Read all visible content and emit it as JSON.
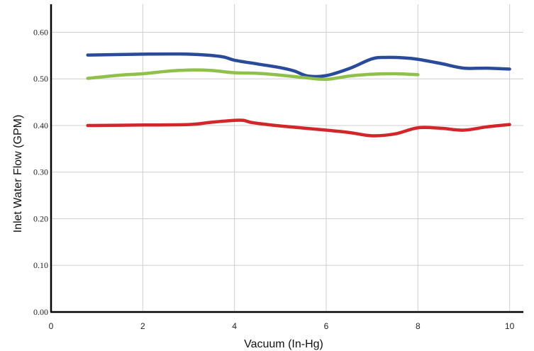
{
  "chart_data": {
    "type": "line",
    "title": "",
    "xlabel": "Vacuum (In-Hg)",
    "ylabel": "Inlet Water Flow (GPM)",
    "xlim": [
      0,
      10.3
    ],
    "ylim": [
      0,
      0.66
    ],
    "x_ticks": [
      0,
      2,
      4,
      6,
      8,
      10
    ],
    "x_tick_labels": [
      "0",
      "2",
      "4",
      "6",
      "8",
      "10"
    ],
    "y_ticks": [
      0.0,
      0.1,
      0.2,
      0.3,
      0.4,
      0.5,
      0.6
    ],
    "y_tick_labels": [
      "0.00",
      "0.10",
      "0.20",
      "0.30",
      "0.40",
      "0.50",
      "0.60"
    ],
    "grid": true,
    "series": [
      {
        "color": "#2a4a9a",
        "x": [
          0.8,
          2,
          3,
          3.7,
          4,
          4.5,
          5,
          5.3,
          5.6,
          6,
          6.5,
          7,
          7.3,
          7.7,
          8,
          8.5,
          9,
          9.5,
          10
        ],
        "y": [
          0.551,
          0.553,
          0.553,
          0.548,
          0.54,
          0.532,
          0.524,
          0.517,
          0.506,
          0.507,
          0.522,
          0.543,
          0.546,
          0.545,
          0.542,
          0.533,
          0.523,
          0.523,
          0.521
        ]
      },
      {
        "color": "#8fc04a",
        "x": [
          0.8,
          1.5,
          2,
          2.5,
          3,
          3.5,
          4,
          4.5,
          5,
          5.5,
          6,
          6.5,
          7,
          7.5,
          8
        ],
        "y": [
          0.501,
          0.508,
          0.511,
          0.516,
          0.519,
          0.518,
          0.513,
          0.512,
          0.508,
          0.503,
          0.499,
          0.506,
          0.51,
          0.511,
          0.509
        ]
      },
      {
        "color": "#d2262b",
        "x": [
          0.8,
          2,
          3,
          3.5,
          4,
          4.2,
          4.4,
          5,
          6,
          6.5,
          7,
          7.5,
          8,
          8.5,
          9,
          9.5,
          10
        ],
        "y": [
          0.4,
          0.401,
          0.402,
          0.407,
          0.411,
          0.411,
          0.406,
          0.399,
          0.39,
          0.385,
          0.378,
          0.382,
          0.395,
          0.394,
          0.39,
          0.397,
          0.402
        ]
      }
    ]
  }
}
